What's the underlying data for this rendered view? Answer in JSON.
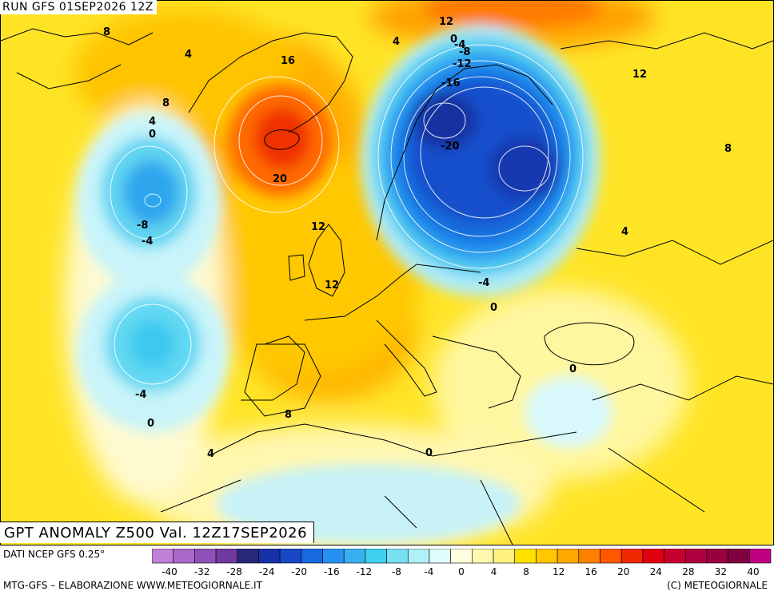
{
  "header": {
    "run_label": "RUN GFS 01SEP2026 12Z",
    "title": "GPT ANOMALY Z500 Val. 12Z17SEP2026"
  },
  "footer": {
    "source": "DATI NCEP GFS 0.25°",
    "credit_left": "MTG-GFS – ELABORAZIONE WWW.METEOGIORNALE.IT",
    "credit_right": "(C) METEOGIORNALE"
  },
  "map": {
    "contour_labels": [
      {
        "text": "8"
      },
      {
        "text": "4"
      },
      {
        "text": "8"
      },
      {
        "text": "4"
      },
      {
        "text": "0"
      },
      {
        "text": "16"
      },
      {
        "text": "20"
      },
      {
        "text": "-8"
      },
      {
        "text": "-4"
      },
      {
        "text": "12"
      },
      {
        "text": "12"
      },
      {
        "text": "-4"
      },
      {
        "text": "0"
      },
      {
        "text": "8"
      },
      {
        "text": "4"
      },
      {
        "text": "0"
      },
      {
        "text": "4"
      },
      {
        "text": "12"
      },
      {
        "text": "0"
      },
      {
        "text": "-4"
      },
      {
        "text": "-8"
      },
      {
        "text": "-12"
      },
      {
        "text": "-16"
      },
      {
        "text": "-20"
      },
      {
        "text": "12"
      },
      {
        "text": "8"
      },
      {
        "text": "4"
      },
      {
        "text": "-4"
      },
      {
        "text": "0"
      },
      {
        "text": "0"
      }
    ]
  },
  "colorbar": {
    "colors": [
      "#c080d8",
      "#a868c8",
      "#9050b8",
      "#7038a0",
      "#282878",
      "#1830a8",
      "#1848c8",
      "#1868e0",
      "#2890f0",
      "#38b0f0",
      "#40d0f0",
      "#78e0f0",
      "#b0f0f8",
      "#e0fcfc",
      "#ffffe0",
      "#fff8b0",
      "#fff080",
      "#ffe000",
      "#ffc800",
      "#ffa800",
      "#ff8000",
      "#ff5800",
      "#f02800",
      "#e00010",
      "#c80030",
      "#b00040",
      "#980040",
      "#800040",
      "#c00080"
    ],
    "tick_labels": [
      "-40",
      "-32",
      "-28",
      "-24",
      "-20",
      "-16",
      "-12",
      "-8",
      "-4",
      "0",
      "4",
      "8",
      "12",
      "16",
      "20",
      "24",
      "28",
      "32",
      "40"
    ]
  }
}
